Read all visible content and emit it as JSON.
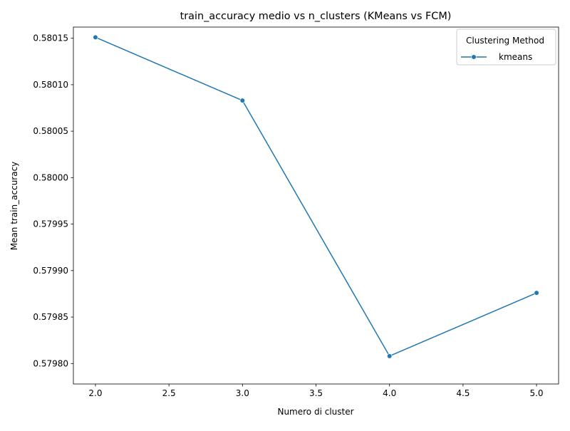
{
  "chart_data": {
    "type": "line",
    "title": "train_accuracy medio vs n_clusters (KMeans vs FCM)",
    "xlabel": "Numero di cluster",
    "ylabel": "Mean train_accuracy",
    "xlim": [
      1.85,
      5.15
    ],
    "ylim": [
      0.579778,
      0.580162
    ],
    "x_ticks": [
      2.0,
      2.5,
      3.0,
      3.5,
      4.0,
      4.5,
      5.0
    ],
    "x_tick_labels": [
      "2.0",
      "2.5",
      "3.0",
      "3.5",
      "4.0",
      "4.5",
      "5.0"
    ],
    "y_ticks": [
      0.5798,
      0.57985,
      0.5799,
      0.57995,
      0.58,
      0.58005,
      0.5801,
      0.58015
    ],
    "y_tick_labels": [
      "0.57980",
      "0.57985",
      "0.57990",
      "0.57995",
      "0.58000",
      "0.58005",
      "0.58010",
      "0.58015"
    ],
    "grid": false,
    "legend": {
      "title": "Clustering Method",
      "placement": "top-right"
    },
    "series": [
      {
        "name": "kmeans",
        "color": "#1f77b4",
        "marker": "circle",
        "x": [
          2.0,
          3.0,
          4.0,
          5.0
        ],
        "values": [
          0.580151,
          0.580083,
          0.579808,
          0.579876
        ]
      }
    ]
  }
}
